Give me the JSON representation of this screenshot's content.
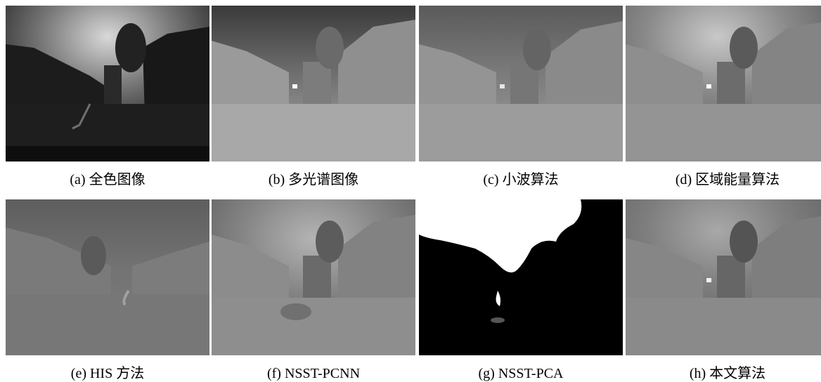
{
  "figures": [
    {
      "caption": "(a)  全色图像",
      "variant": "dark"
    },
    {
      "caption": "(b)  多光谱图像",
      "variant": "light"
    },
    {
      "caption": "(c)  小波算法",
      "variant": "mid"
    },
    {
      "caption": "(d)  区域能量算法",
      "variant": "sharp"
    },
    {
      "caption": "(e) HIS 方法",
      "variant": "flat"
    },
    {
      "caption": "(f) NSST-PCNN",
      "variant": "blur"
    },
    {
      "caption": "(g) NSST-PCA",
      "variant": "binary"
    },
    {
      "caption": "(h)  本文算法",
      "variant": "sharp"
    }
  ]
}
